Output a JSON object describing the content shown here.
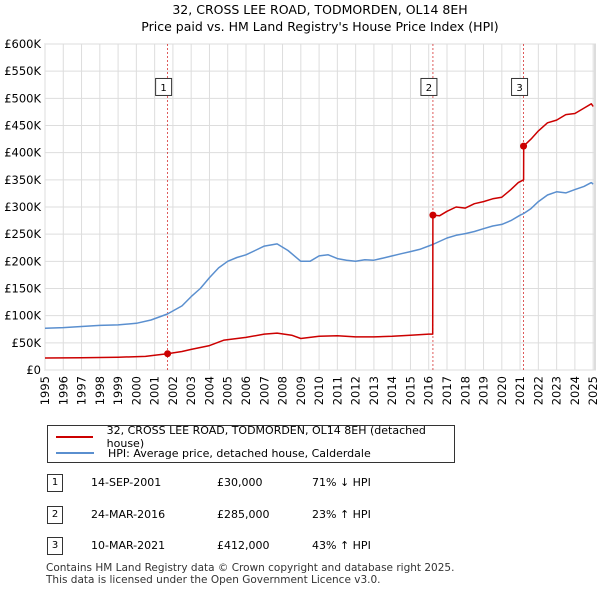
{
  "chart_data": {
    "type": "line",
    "title": "32, CROSS LEE ROAD, TODMORDEN, OL14 8EH",
    "subtitle": "Price paid vs. HM Land Registry's House Price Index (HPI)",
    "xlim": [
      1995,
      2025.1
    ],
    "ylim": [
      0,
      600000
    ],
    "x_ticks": [
      1995,
      1996,
      1997,
      1998,
      1999,
      2000,
      2001,
      2002,
      2003,
      2004,
      2005,
      2006,
      2007,
      2008,
      2009,
      2010,
      2011,
      2012,
      2013,
      2014,
      2015,
      2016,
      2017,
      2018,
      2019,
      2020,
      2021,
      2022,
      2023,
      2024,
      2025
    ],
    "x_tick_labels": [
      "1995",
      "1996",
      "1997",
      "1998",
      "1999",
      "2000",
      "2001",
      "2002",
      "2003",
      "2004",
      "2005",
      "2006",
      "2007",
      "2008",
      "2009",
      "2010",
      "2011",
      "2012",
      "2013",
      "2014",
      "2015",
      "2016",
      "2017",
      "2018",
      "2019",
      "2020",
      "2021",
      "2022",
      "2023",
      "2024",
      "2025"
    ],
    "y_ticks": [
      0,
      50000,
      100000,
      150000,
      200000,
      250000,
      300000,
      350000,
      400000,
      450000,
      500000,
      550000,
      600000
    ],
    "y_tick_labels": [
      "£0",
      "£50K",
      "£100K",
      "£150K",
      "£200K",
      "£250K",
      "£300K",
      "£350K",
      "£400K",
      "£450K",
      "£500K",
      "£550K",
      "£600K"
    ],
    "grid": true,
    "series": [
      {
        "name": "32, CROSS LEE ROAD, TODMORDEN, OL14 8EH (detached house)",
        "color": "#cc0000",
        "points": [
          [
            1995.0,
            22000
          ],
          [
            1997.0,
            22500
          ],
          [
            1999.0,
            23500
          ],
          [
            2000.5,
            25000
          ],
          [
            2001.0,
            27000
          ],
          [
            2001.7,
            30000
          ],
          [
            2002.5,
            34000
          ],
          [
            2003.0,
            38000
          ],
          [
            2004.0,
            45000
          ],
          [
            2004.8,
            55000
          ],
          [
            2006.0,
            60000
          ],
          [
            2007.0,
            66000
          ],
          [
            2007.7,
            68000
          ],
          [
            2008.5,
            64000
          ],
          [
            2009.0,
            58000
          ],
          [
            2010.0,
            62000
          ],
          [
            2011.0,
            63000
          ],
          [
            2012.0,
            61000
          ],
          [
            2013.0,
            61000
          ],
          [
            2014.0,
            62000
          ],
          [
            2015.0,
            64000
          ],
          [
            2016.0,
            66000
          ],
          [
            2016.22,
            66000
          ],
          [
            2016.23,
            285000
          ],
          [
            2016.6,
            284000
          ],
          [
            2017.0,
            292000
          ],
          [
            2017.5,
            300000
          ],
          [
            2018.0,
            298000
          ],
          [
            2018.5,
            306000
          ],
          [
            2019.0,
            310000
          ],
          [
            2019.5,
            315000
          ],
          [
            2020.0,
            318000
          ],
          [
            2020.5,
            332000
          ],
          [
            2020.9,
            345000
          ],
          [
            2021.19,
            350000
          ],
          [
            2021.2,
            412000
          ],
          [
            2021.6,
            425000
          ],
          [
            2022.0,
            440000
          ],
          [
            2022.5,
            455000
          ],
          [
            2023.0,
            460000
          ],
          [
            2023.5,
            470000
          ],
          [
            2024.0,
            472000
          ],
          [
            2024.5,
            482000
          ],
          [
            2024.9,
            490000
          ],
          [
            2025.0,
            485000
          ]
        ]
      },
      {
        "name": "HPI: Average price, detached house, Calderdale",
        "color": "#5a8fcf",
        "points": [
          [
            1995.0,
            77000
          ],
          [
            1996.0,
            78000
          ],
          [
            1997.0,
            80000
          ],
          [
            1998.0,
            82000
          ],
          [
            1999.0,
            83000
          ],
          [
            2000.0,
            86000
          ],
          [
            2000.8,
            92000
          ],
          [
            2001.7,
            103000
          ],
          [
            2002.5,
            118000
          ],
          [
            2003.0,
            135000
          ],
          [
            2003.5,
            150000
          ],
          [
            2004.0,
            170000
          ],
          [
            2004.5,
            188000
          ],
          [
            2005.0,
            200000
          ],
          [
            2005.5,
            207000
          ],
          [
            2006.0,
            212000
          ],
          [
            2006.5,
            220000
          ],
          [
            2007.0,
            228000
          ],
          [
            2007.7,
            232000
          ],
          [
            2008.3,
            220000
          ],
          [
            2009.0,
            200000
          ],
          [
            2009.5,
            200000
          ],
          [
            2010.0,
            210000
          ],
          [
            2010.5,
            212000
          ],
          [
            2011.0,
            205000
          ],
          [
            2011.5,
            202000
          ],
          [
            2012.0,
            200000
          ],
          [
            2012.5,
            203000
          ],
          [
            2013.0,
            202000
          ],
          [
            2013.5,
            206000
          ],
          [
            2014.0,
            210000
          ],
          [
            2014.5,
            214000
          ],
          [
            2015.0,
            218000
          ],
          [
            2015.5,
            222000
          ],
          [
            2016.22,
            231000
          ],
          [
            2017.0,
            243000
          ],
          [
            2017.5,
            248000
          ],
          [
            2018.0,
            251000
          ],
          [
            2018.5,
            255000
          ],
          [
            2019.0,
            260000
          ],
          [
            2019.5,
            265000
          ],
          [
            2020.0,
            268000
          ],
          [
            2020.5,
            275000
          ],
          [
            2021.0,
            285000
          ],
          [
            2021.2,
            288000
          ],
          [
            2021.6,
            297000
          ],
          [
            2022.0,
            310000
          ],
          [
            2022.5,
            322000
          ],
          [
            2023.0,
            328000
          ],
          [
            2023.5,
            326000
          ],
          [
            2024.0,
            332000
          ],
          [
            2024.5,
            338000
          ],
          [
            2024.9,
            345000
          ],
          [
            2025.0,
            342000
          ]
        ]
      }
    ],
    "sales": [
      {
        "label": "1",
        "x": 2001.71,
        "price": 30000
      },
      {
        "label": "2",
        "x": 2016.23,
        "price": 285000
      },
      {
        "label": "3",
        "x": 2021.19,
        "price": 412000
      }
    ],
    "marker_label_y": 520000
  },
  "legend": {
    "property_label": "32, CROSS LEE ROAD, TODMORDEN, OL14 8EH (detached house)",
    "hpi_label": "HPI: Average price, detached house, Calderdale",
    "property_color": "#cc0000",
    "hpi_color": "#5a8fcf"
  },
  "transactions": [
    {
      "num": "1",
      "date": "14-SEP-2001",
      "price": "£30,000",
      "hpi": "71% ↓ HPI"
    },
    {
      "num": "2",
      "date": "24-MAR-2016",
      "price": "£285,000",
      "hpi": "23% ↑ HPI"
    },
    {
      "num": "3",
      "date": "10-MAR-2021",
      "price": "£412,000",
      "hpi": "43% ↑ HPI"
    }
  ],
  "footer": {
    "line1": "Contains HM Land Registry data © Crown copyright and database right 2025.",
    "line2": "This data is licensed under the Open Government Licence v3.0."
  }
}
